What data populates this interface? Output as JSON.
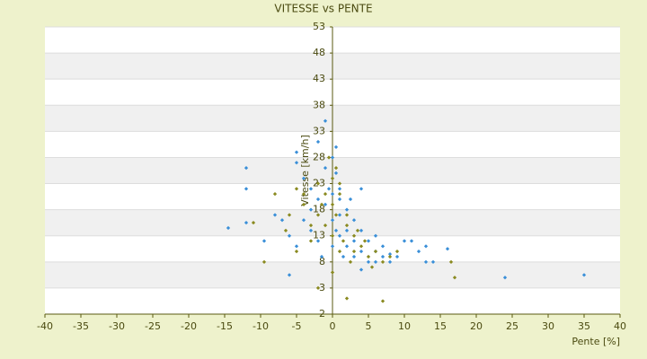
{
  "chart_data": {
    "type": "scatter",
    "title": "VITESSE vs PENTE",
    "x_label": "Pente [%]",
    "y_label": "Vitesse [km/h]",
    "xlim": [
      -40,
      40
    ],
    "xticks": [
      -40,
      -35,
      -30,
      -25,
      -20,
      -15,
      -10,
      -5,
      0,
      5,
      10,
      15,
      20,
      25,
      30,
      35,
      40
    ],
    "ylim": [
      -2,
      53
    ],
    "yticks": [
      -2,
      3,
      8,
      13,
      18,
      23,
      28,
      33,
      38,
      43,
      48,
      53
    ],
    "grid": true,
    "series": [
      {
        "color": "#3a8fd8",
        "x": [
          -12,
          -12,
          -14.5,
          -12,
          -9.5,
          -6,
          -5,
          -5,
          -4,
          -3,
          -2,
          -1,
          0,
          0.5,
          1,
          1,
          2,
          3,
          4,
          4,
          5,
          6,
          7,
          8,
          10,
          11,
          12,
          13,
          13,
          14,
          16,
          24,
          35,
          -8,
          -6,
          -5,
          -3,
          -2,
          -1,
          0,
          0,
          1,
          2,
          3,
          5,
          6,
          -4,
          -2,
          1,
          2,
          3,
          4,
          7,
          8,
          0.5,
          -0.5,
          1.5,
          -1.5,
          -7,
          2.5,
          -3,
          0,
          6,
          9,
          4,
          -1,
          0.5
        ],
        "values": [
          26,
          22,
          14.5,
          15.5,
          12,
          5.5,
          29,
          27,
          24,
          22,
          31,
          35,
          28,
          25,
          22,
          20,
          18,
          16,
          22,
          14,
          12,
          10,
          9,
          9.5,
          12,
          12,
          10,
          8,
          11,
          8,
          10.5,
          5,
          5.5,
          17,
          13,
          11,
          14,
          12,
          19,
          21,
          16,
          13,
          11,
          9,
          8,
          8,
          16,
          20,
          17,
          14,
          12,
          10,
          11,
          8,
          14,
          22,
          9,
          9,
          16,
          20,
          18,
          11,
          13,
          9,
          6.5,
          26,
          30
        ]
      },
      {
        "color": "#8a8a20",
        "x": [
          -8,
          -9.5,
          -11,
          -6,
          -5,
          -4,
          -3,
          -2,
          -1,
          0,
          0,
          0.5,
          1,
          1.5,
          2,
          3,
          4,
          5,
          6,
          7,
          8,
          16.5,
          17,
          2,
          7,
          -2,
          0,
          -5,
          -3,
          1,
          3,
          4.5,
          -1,
          0,
          2,
          -4,
          -2,
          1,
          0.5,
          -0.5,
          2.5,
          5.5,
          -6.5,
          9,
          3.5,
          -1.5
        ],
        "values": [
          21,
          8,
          15.5,
          17,
          22,
          19,
          15,
          23,
          21,
          24,
          19,
          17,
          21,
          12,
          15,
          10,
          11,
          9,
          10,
          8,
          9,
          8,
          5,
          1,
          0.5,
          3,
          6,
          10,
          12,
          10,
          13,
          12,
          15,
          13,
          17,
          21,
          17,
          23,
          26,
          28,
          8,
          7,
          14,
          10,
          14,
          19
        ]
      }
    ]
  }
}
